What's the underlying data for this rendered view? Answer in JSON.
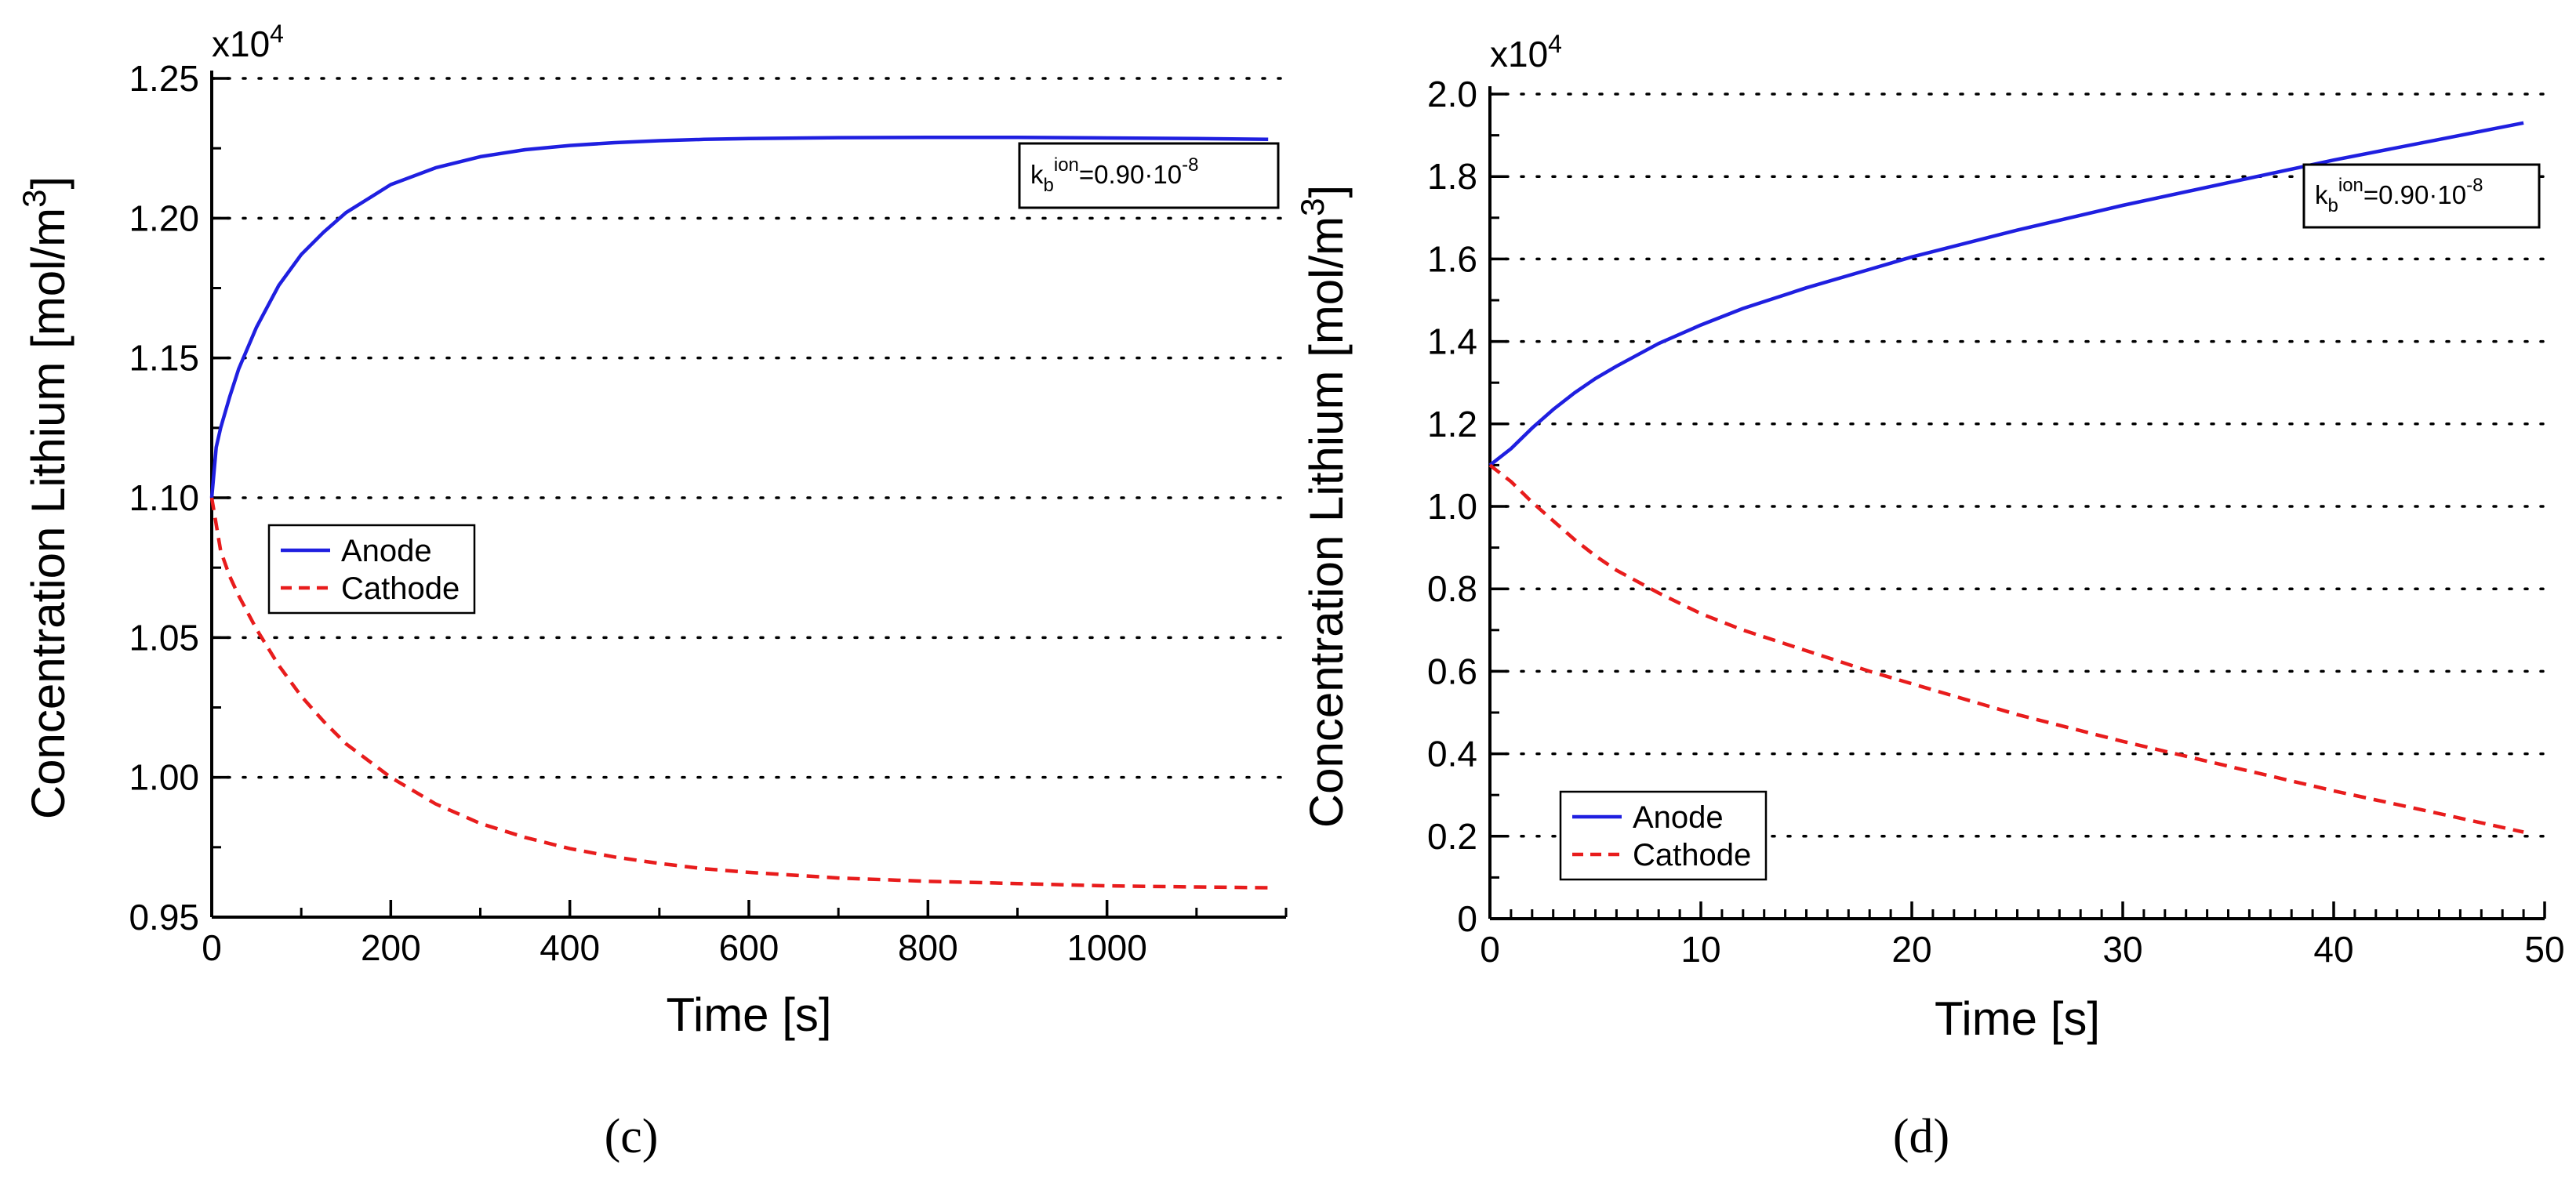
{
  "chart_data": [
    {
      "type": "line",
      "panel_label": "(c)",
      "title": "",
      "xlabel": "Time [s]",
      "ylabel": "Concentration Lithium [mol/m3]",
      "ylabel_text": "Concentration Lithium [mol/m",
      "ylabel_sup": "3",
      "ylabel_close": "]",
      "scale_prefix": "x10",
      "scale_exp": "4",
      "xlim": [
        0,
        1200
      ],
      "ylim": [
        0.95,
        1.25
      ],
      "xticks": [
        0,
        200,
        400,
        600,
        800,
        1000
      ],
      "xtick_labels": [
        "0",
        "200",
        "400",
        "600",
        "800",
        "1000"
      ],
      "yticks": [
        0.95,
        1.0,
        1.05,
        1.1,
        1.15,
        1.2,
        1.25
      ],
      "ytick_labels": [
        "0.95",
        "1.00",
        "1.05",
        "1.10",
        "1.15",
        "1.20",
        "1.25"
      ],
      "xminor_step": 100,
      "yminor_step": 0.025,
      "grid": "horizontal dotted",
      "legend": {
        "placement": "center-left",
        "entries": [
          "Anode",
          "Cathode"
        ]
      },
      "annotation": {
        "base": "k",
        "sub": "b",
        "sup": "ion",
        "value": "=0.90·10",
        "value_sup": "-8",
        "placement": "top-right"
      },
      "series": [
        {
          "name": "Anode",
          "color": "#1f1fe0",
          "dash": "solid",
          "x": [
            0,
            5,
            10,
            20,
            30,
            50,
            75,
            100,
            125,
            150,
            175,
            200,
            250,
            300,
            350,
            400,
            450,
            500,
            550,
            600,
            700,
            800,
            900,
            1000,
            1100,
            1180
          ],
          "y": [
            1.1,
            1.118,
            1.125,
            1.136,
            1.146,
            1.161,
            1.176,
            1.187,
            1.195,
            1.202,
            1.207,
            1.212,
            1.218,
            1.222,
            1.2245,
            1.226,
            1.227,
            1.2277,
            1.2282,
            1.2285,
            1.2288,
            1.2289,
            1.2289,
            1.2287,
            1.2285,
            1.2282
          ]
        },
        {
          "name": "Cathode",
          "color": "#e81c1c",
          "dash": "dashed",
          "x": [
            0,
            10,
            20,
            30,
            50,
            75,
            100,
            125,
            150,
            175,
            200,
            250,
            300,
            350,
            400,
            450,
            500,
            550,
            600,
            700,
            800,
            900,
            1000,
            1100,
            1180
          ],
          "y": [
            1.1,
            1.081,
            1.072,
            1.065,
            1.053,
            1.04,
            1.029,
            1.02,
            1.012,
            1.006,
            1.0,
            0.9905,
            0.9835,
            0.9785,
            0.9745,
            0.9715,
            0.9692,
            0.9673,
            0.966,
            0.964,
            0.9628,
            0.962,
            0.9612,
            0.9608,
            0.9605
          ]
        }
      ]
    },
    {
      "type": "line",
      "panel_label": "(d)",
      "title": "",
      "xlabel": "Time [s]",
      "ylabel": "Concentration Lithium [mol/m3]",
      "ylabel_text": "Concentration Lithium [mol/m",
      "ylabel_sup": "3",
      "ylabel_close": "]",
      "scale_prefix": "x10",
      "scale_exp": "4",
      "xlim": [
        0,
        50
      ],
      "ylim": [
        0,
        2.0
      ],
      "xticks": [
        0,
        10,
        20,
        30,
        40,
        50
      ],
      "xtick_labels": [
        "0",
        "10",
        "20",
        "30",
        "40",
        "50"
      ],
      "yticks": [
        0,
        0.2,
        0.4,
        0.6,
        0.8,
        1.0,
        1.2,
        1.4,
        1.6,
        1.8,
        2.0
      ],
      "ytick_labels": [
        "0",
        "0.2",
        "0.4",
        "0.6",
        "0.8",
        "1.0",
        "1.2",
        "1.4",
        "1.6",
        "1.8",
        "2.0"
      ],
      "xminor_step": 1,
      "yminor_step": 0.1,
      "grid": "horizontal dotted",
      "legend": {
        "placement": "bottom-left",
        "entries": [
          "Anode",
          "Cathode"
        ]
      },
      "annotation": {
        "base": "k",
        "sub": "b",
        "sup": "ion",
        "value": "=0.90·10",
        "value_sup": "-8",
        "placement": "top-right"
      },
      "series": [
        {
          "name": "Anode",
          "color": "#1f1fe0",
          "dash": "solid",
          "x": [
            0,
            1,
            2,
            3,
            4,
            5,
            6,
            8,
            10,
            12,
            15,
            18,
            20,
            25,
            30,
            35,
            40,
            45,
            49
          ],
          "y": [
            1.1,
            1.14,
            1.19,
            1.235,
            1.275,
            1.31,
            1.34,
            1.395,
            1.44,
            1.48,
            1.53,
            1.575,
            1.605,
            1.67,
            1.73,
            1.785,
            1.84,
            1.89,
            1.93
          ]
        },
        {
          "name": "Cathode",
          "color": "#e81c1c",
          "dash": "dashed",
          "x": [
            0,
            1,
            2,
            3,
            4,
            5,
            6,
            8,
            10,
            12,
            15,
            18,
            20,
            25,
            30,
            35,
            40,
            45,
            49
          ],
          "y": [
            1.1,
            1.06,
            1.01,
            0.965,
            0.92,
            0.88,
            0.845,
            0.79,
            0.74,
            0.7,
            0.65,
            0.6,
            0.57,
            0.495,
            0.43,
            0.37,
            0.31,
            0.255,
            0.21
          ]
        }
      ]
    }
  ]
}
